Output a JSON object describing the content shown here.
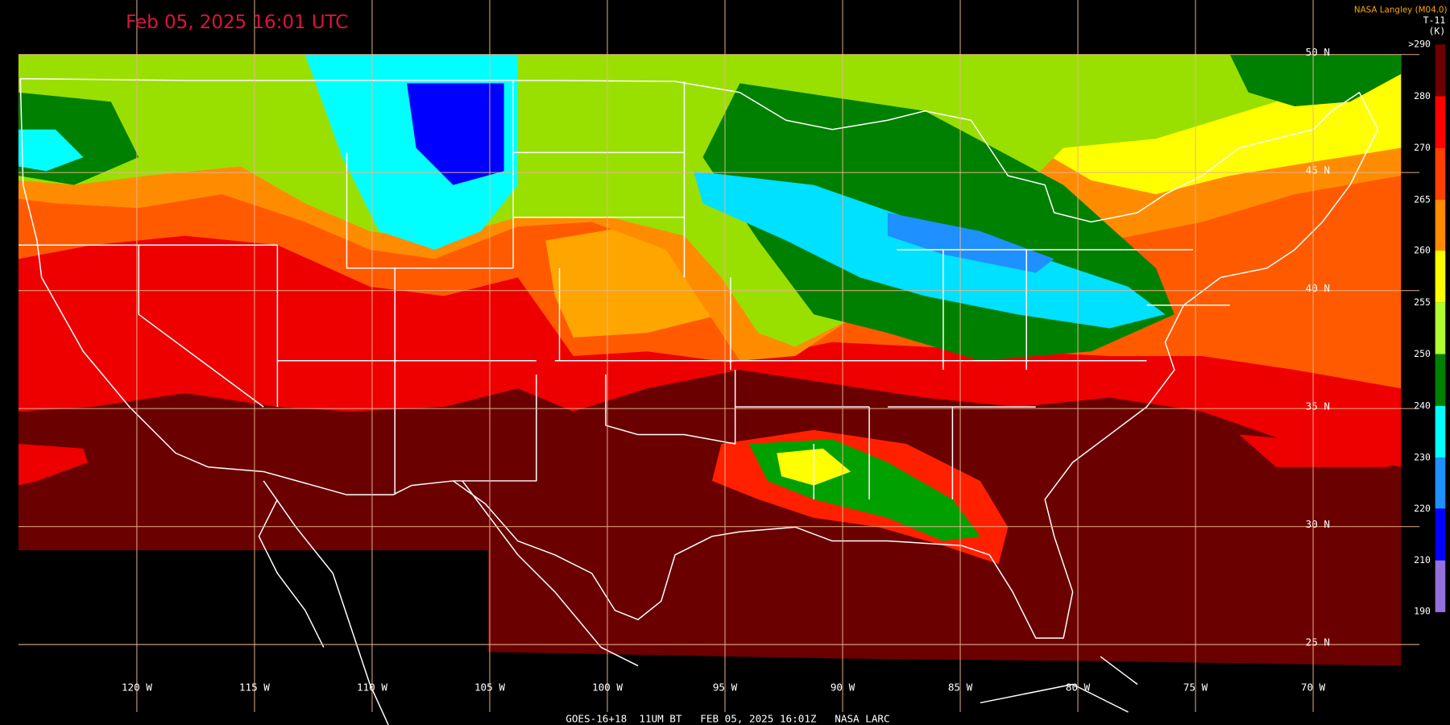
{
  "header": {
    "timestamp": "Feb 05, 2025 16:01 UTC",
    "source": "NASA Langley (M04.0)"
  },
  "legend": {
    "title": "T-11",
    "unit": "(K)",
    "labels": [
      ">290",
      "280",
      "270",
      "265",
      "260",
      "255",
      "250",
      "240",
      "230",
      "220",
      "210",
      "190"
    ]
  },
  "map": {
    "latitude_labels": [
      "50 N",
      "45 N",
      "40 N",
      "35 N",
      "30 N",
      "25 N"
    ],
    "longitude_labels": [
      "120 W",
      "115 W",
      "110 W",
      "105 W",
      "100 W",
      "95 W",
      "90 W",
      "85 W",
      "80 W",
      "75 W",
      "70 W"
    ]
  },
  "footer": {
    "caption": "GOES-16+18  11UM BT   FEB 05, 2025 16:01Z   NASA LARC"
  }
}
